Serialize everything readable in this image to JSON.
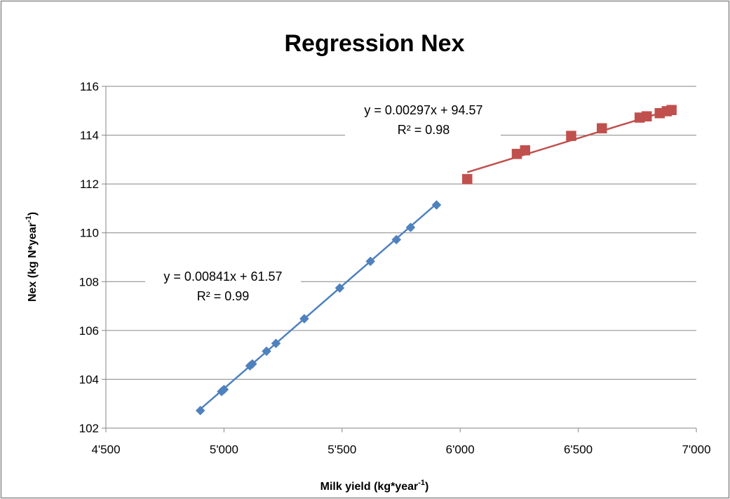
{
  "chart_data": {
    "type": "scatter",
    "title": "Regression Nex",
    "xlabel": "Milk yield (kg*year",
    "xlabel_sup": "-1",
    "xlabel_end": ")",
    "ylabel": "Nex (kg N*year",
    "ylabel_sup": "-1",
    "ylabel_end": ")",
    "xlim": [
      4500,
      7000
    ],
    "ylim": [
      102,
      116
    ],
    "x_ticks": [
      4500,
      5000,
      5500,
      6000,
      6500,
      7000
    ],
    "x_tick_labels": [
      "4'500",
      "5'000",
      "5'500",
      "6'000",
      "6'500",
      "7'000"
    ],
    "y_ticks": [
      102,
      104,
      106,
      108,
      110,
      112,
      114,
      116
    ],
    "y_tick_labels": [
      "102",
      "104",
      "106",
      "108",
      "110",
      "112",
      "114",
      "116"
    ],
    "grid": "horizontal",
    "series": [
      {
        "color": "#4F81BD",
        "marker": "diamond",
        "points": [
          {
            "x": 4900,
            "y": 102.72
          },
          {
            "x": 4990,
            "y": 103.5
          },
          {
            "x": 5000,
            "y": 103.58
          },
          {
            "x": 5110,
            "y": 104.55
          },
          {
            "x": 5120,
            "y": 104.63
          },
          {
            "x": 5180,
            "y": 105.15
          },
          {
            "x": 5220,
            "y": 105.47
          },
          {
            "x": 5340,
            "y": 106.48
          },
          {
            "x": 5490,
            "y": 107.74
          },
          {
            "x": 5620,
            "y": 108.83
          },
          {
            "x": 5730,
            "y": 109.72
          },
          {
            "x": 5790,
            "y": 110.22
          },
          {
            "x": 5900,
            "y": 111.14
          }
        ],
        "trendline": {
          "x_start": 4900,
          "x_end": 5900,
          "slope": 0.00841,
          "intercept": 61.57
        },
        "equation": "y = 0.00841x + 61.57",
        "r_squared": "R² = 0.99"
      },
      {
        "color": "#C0504D",
        "marker": "square",
        "points": [
          {
            "x": 6030,
            "y": 112.2
          },
          {
            "x": 6240,
            "y": 113.23
          },
          {
            "x": 6275,
            "y": 113.38
          },
          {
            "x": 6470,
            "y": 113.97
          },
          {
            "x": 6600,
            "y": 114.28
          },
          {
            "x": 6760,
            "y": 114.72
          },
          {
            "x": 6790,
            "y": 114.77
          },
          {
            "x": 6845,
            "y": 114.9
          },
          {
            "x": 6875,
            "y": 114.98
          },
          {
            "x": 6895,
            "y": 115.03
          }
        ],
        "trendline": {
          "x_start": 6030,
          "x_end": 6895,
          "slope": 0.00297,
          "intercept": 94.57
        },
        "equation": "y = 0.00297x + 94.57",
        "r_squared": "R² = 0.98"
      }
    ]
  }
}
